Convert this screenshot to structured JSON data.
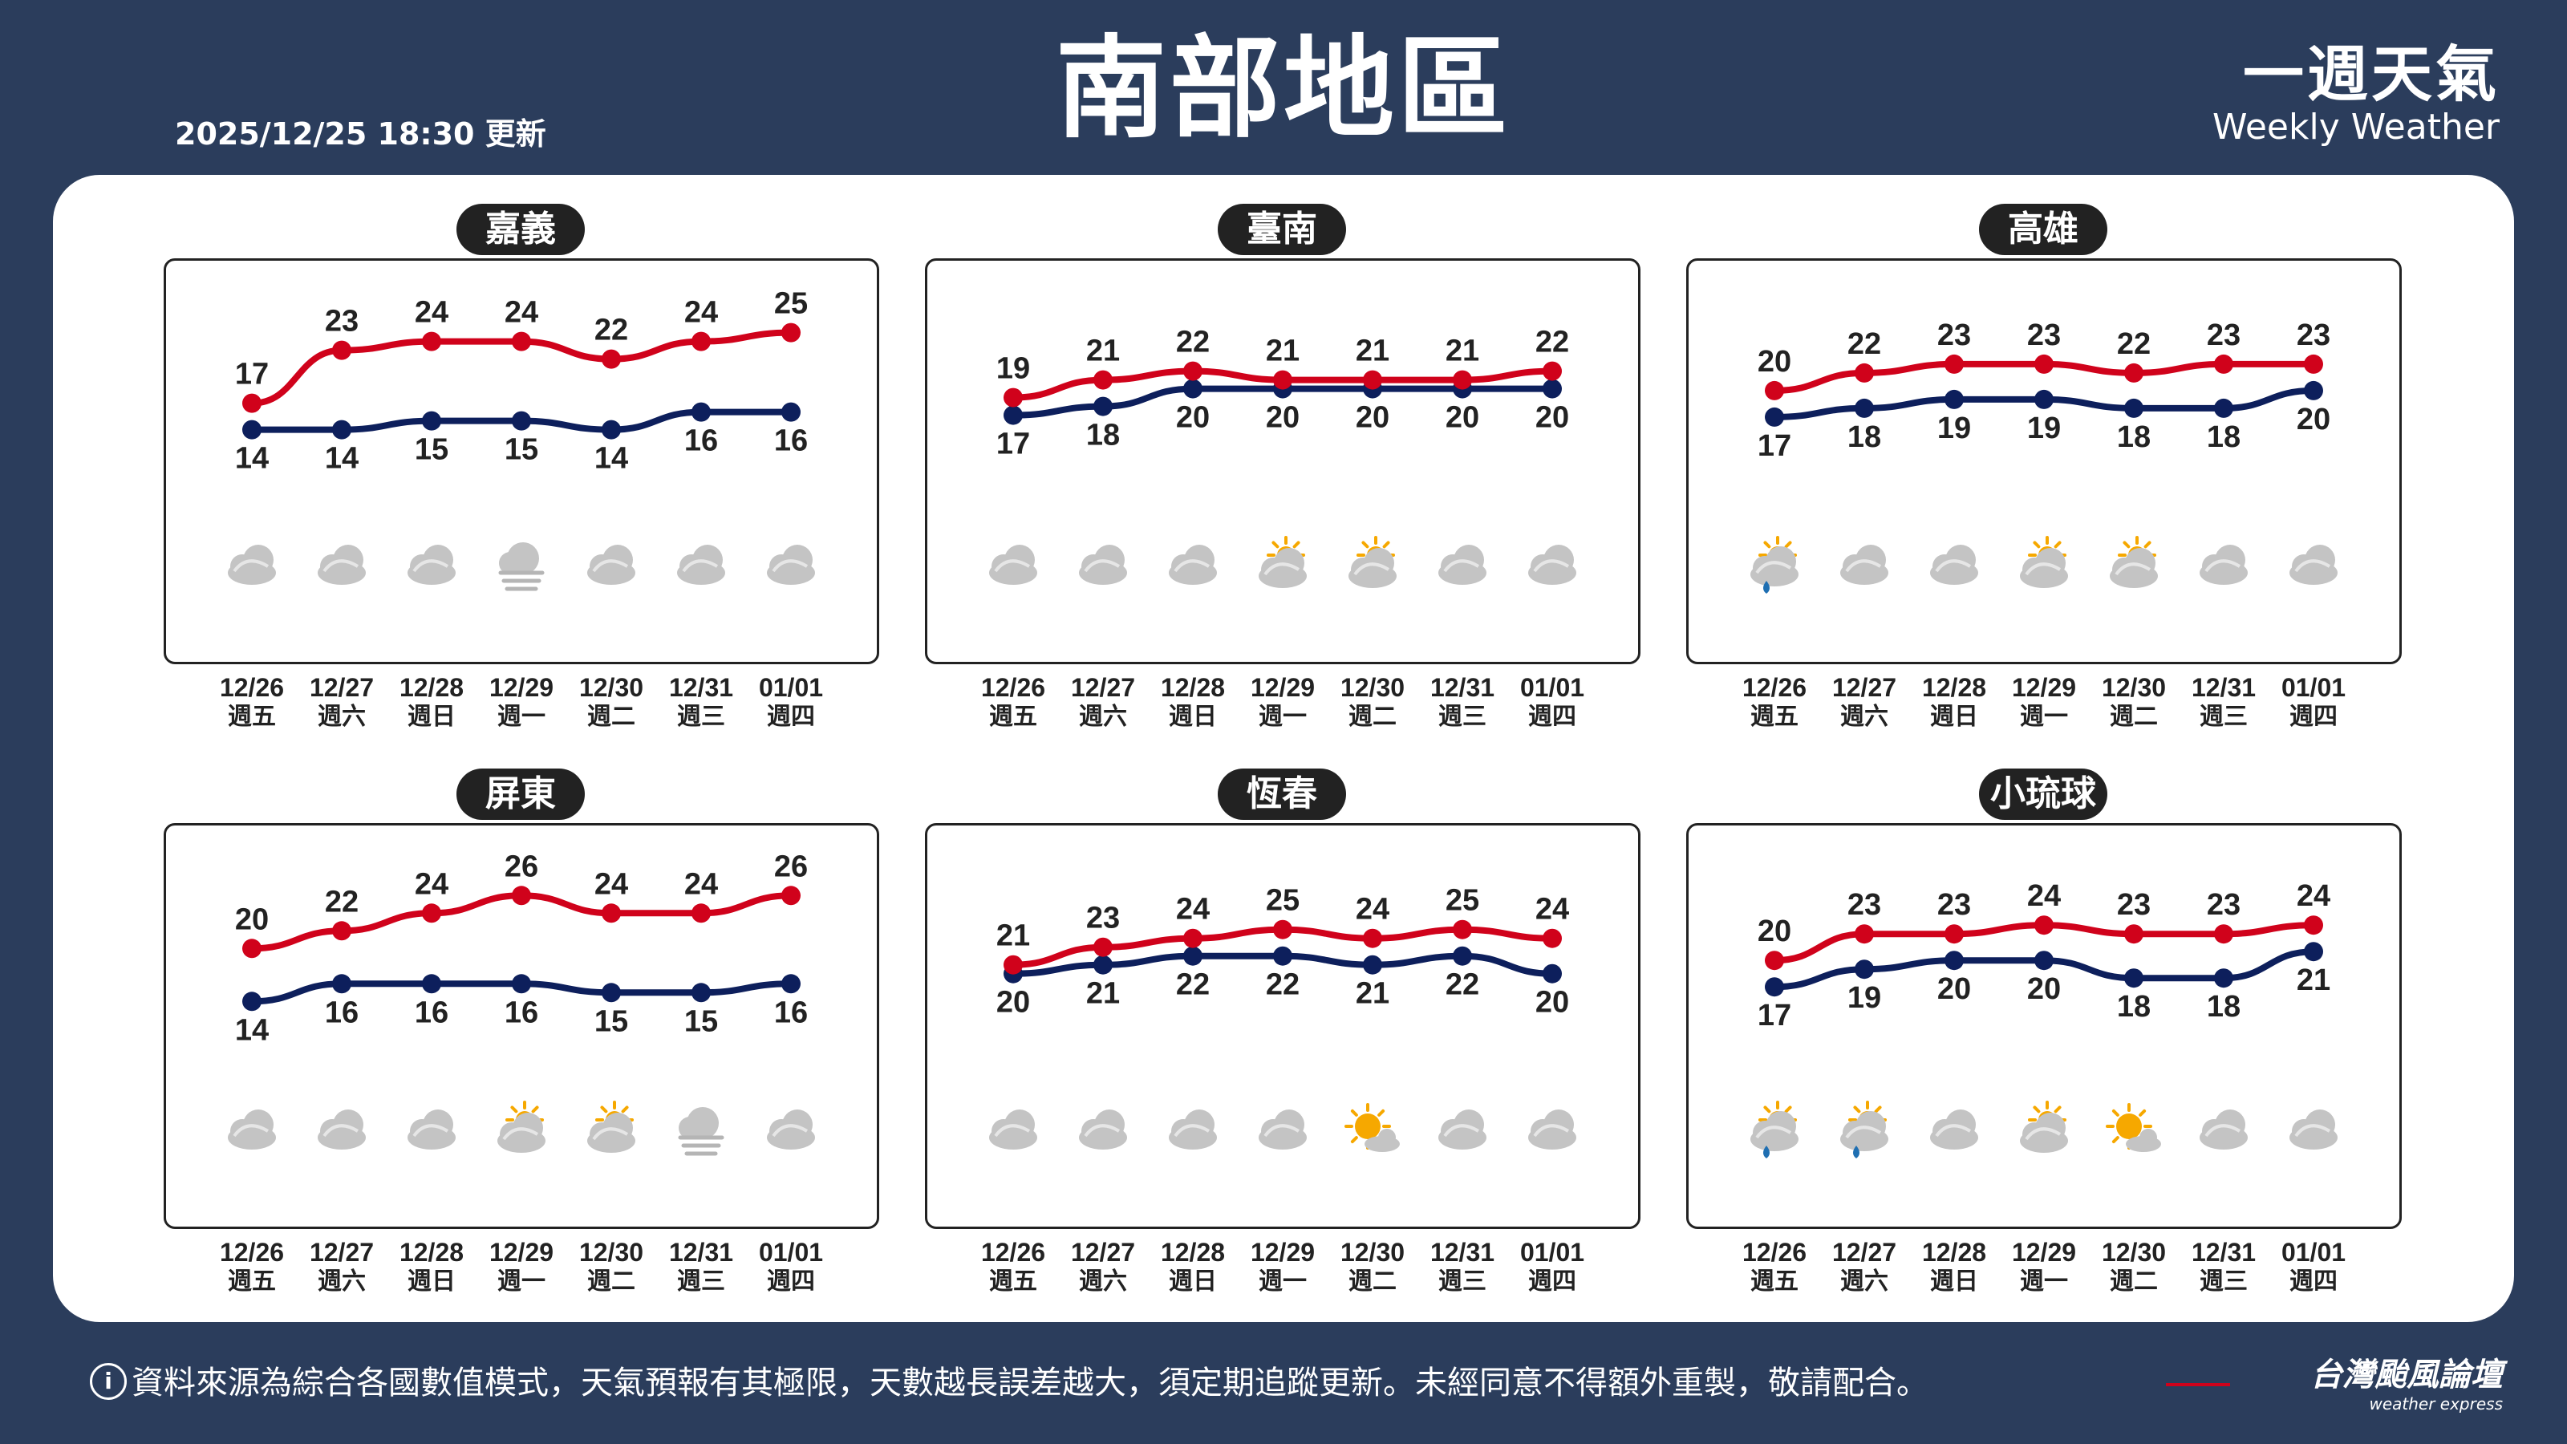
{
  "header": {
    "title": "南部地區",
    "updated": "2025/12/25 18:30 更新",
    "brand_zh": "一週天氣",
    "brand_en": "Weekly Weather"
  },
  "footer": {
    "note": "資料來源為綜合各國數值模式，天氣預報有其極限，天數越長誤差越大，須定期追蹤更新。未經同意不得額外重製，敬請配合。",
    "info_icon": "i",
    "logo_zh": "台灣颱風論壇",
    "logo_en": "weather express"
  },
  "colors": {
    "high": "#d0021b",
    "low": "#0d1f5c",
    "panel": "#ffffff",
    "background": "#2b3d5c"
  },
  "chart_data": [
    {
      "type": "line",
      "region": "嘉義",
      "categories": [
        "12/26",
        "12/27",
        "12/28",
        "12/29",
        "12/30",
        "12/31",
        "01/01"
      ],
      "weekdays": [
        "週五",
        "週六",
        "週日",
        "週一",
        "週二",
        "週三",
        "週四"
      ],
      "series": [
        {
          "values": [
            17,
            23,
            24,
            24,
            22,
            24,
            25
          ]
        },
        {
          "values": [
            14,
            14,
            15,
            15,
            14,
            16,
            16
          ]
        }
      ],
      "weather_icons": [
        "cloudy",
        "cloudy",
        "cloudy",
        "foggy",
        "cloudy",
        "cloudy",
        "cloudy"
      ]
    },
    {
      "type": "line",
      "region": "臺南",
      "categories": [
        "12/26",
        "12/27",
        "12/28",
        "12/29",
        "12/30",
        "12/31",
        "01/01"
      ],
      "weekdays": [
        "週五",
        "週六",
        "週日",
        "週一",
        "週二",
        "週三",
        "週四"
      ],
      "series": [
        {
          "values": [
            19,
            21,
            22,
            21,
            21,
            21,
            22
          ]
        },
        {
          "values": [
            17,
            18,
            20,
            20,
            20,
            20,
            20
          ]
        }
      ],
      "weather_icons": [
        "cloudy",
        "cloudy",
        "cloudy",
        "partly-sunny",
        "partly-sunny",
        "cloudy",
        "cloudy"
      ]
    },
    {
      "type": "line",
      "region": "高雄",
      "categories": [
        "12/26",
        "12/27",
        "12/28",
        "12/29",
        "12/30",
        "12/31",
        "01/01"
      ],
      "weekdays": [
        "週五",
        "週六",
        "週日",
        "週一",
        "週二",
        "週三",
        "週四"
      ],
      "series": [
        {
          "values": [
            20,
            22,
            23,
            23,
            22,
            23,
            23
          ]
        },
        {
          "values": [
            17,
            18,
            19,
            19,
            18,
            18,
            20
          ]
        }
      ],
      "weather_icons": [
        "sun-rain",
        "cloudy",
        "cloudy",
        "partly-sunny",
        "partly-sunny",
        "cloudy",
        "cloudy"
      ]
    },
    {
      "type": "line",
      "region": "屏東",
      "categories": [
        "12/26",
        "12/27",
        "12/28",
        "12/29",
        "12/30",
        "12/31",
        "01/01"
      ],
      "weekdays": [
        "週五",
        "週六",
        "週日",
        "週一",
        "週二",
        "週三",
        "週四"
      ],
      "series": [
        {
          "values": [
            20,
            22,
            24,
            26,
            24,
            24,
            26
          ]
        },
        {
          "values": [
            14,
            16,
            16,
            16,
            15,
            15,
            16
          ]
        }
      ],
      "weather_icons": [
        "cloudy",
        "cloudy",
        "cloudy",
        "partly-sunny",
        "partly-sunny",
        "foggy",
        "cloudy"
      ]
    },
    {
      "type": "line",
      "region": "恆春",
      "categories": [
        "12/26",
        "12/27",
        "12/28",
        "12/29",
        "12/30",
        "12/31",
        "01/01"
      ],
      "weekdays": [
        "週五",
        "週六",
        "週日",
        "週一",
        "週二",
        "週三",
        "週四"
      ],
      "series": [
        {
          "values": [
            21,
            23,
            24,
            25,
            24,
            25,
            24
          ]
        },
        {
          "values": [
            20,
            21,
            22,
            22,
            21,
            22,
            20
          ]
        }
      ],
      "weather_icons": [
        "cloudy",
        "cloudy",
        "cloudy",
        "cloudy",
        "sunny-cloud",
        "cloudy",
        "cloudy"
      ]
    },
    {
      "type": "line",
      "region": "小琉球",
      "categories": [
        "12/26",
        "12/27",
        "12/28",
        "12/29",
        "12/30",
        "12/31",
        "01/01"
      ],
      "weekdays": [
        "週五",
        "週六",
        "週日",
        "週一",
        "週二",
        "週三",
        "週四"
      ],
      "series": [
        {
          "values": [
            20,
            23,
            23,
            24,
            23,
            23,
            24
          ]
        },
        {
          "values": [
            17,
            19,
            20,
            20,
            18,
            18,
            21
          ]
        }
      ],
      "weather_icons": [
        "sun-rain",
        "sun-rain",
        "cloudy",
        "partly-sunny",
        "sunny-cloud",
        "cloudy",
        "cloudy"
      ]
    }
  ]
}
